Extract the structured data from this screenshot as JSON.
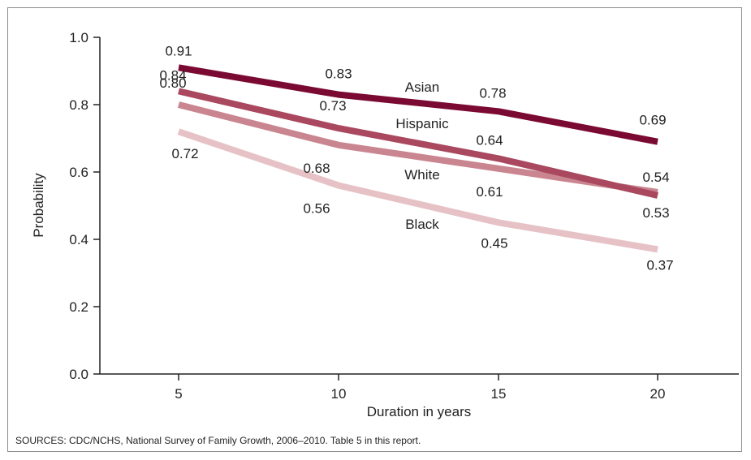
{
  "chart_data": {
    "type": "line",
    "x": [
      5,
      10,
      15,
      20
    ],
    "xlabel": "Duration in years",
    "ylabel": "Probability",
    "ylim": [
      0.0,
      1.0
    ],
    "yticks": [
      "0.0",
      "0.2",
      "0.4",
      "0.6",
      "0.8",
      "1.0"
    ],
    "xticks": [
      "5",
      "10",
      "15",
      "20"
    ],
    "grid": false,
    "series": [
      {
        "name": "Asian",
        "values": [
          0.91,
          0.83,
          0.78,
          0.69
        ],
        "labels": [
          "0.91",
          "0.83",
          "0.78",
          "0.69"
        ],
        "color": "#7b0a32"
      },
      {
        "name": "Hispanic",
        "values": [
          0.84,
          0.73,
          0.64,
          0.53
        ],
        "labels": [
          "0.84",
          "0.73",
          "0.64",
          "0.53"
        ],
        "color": "#a9485f"
      },
      {
        "name": "White",
        "values": [
          0.8,
          0.68,
          0.61,
          0.54
        ],
        "labels": [
          "0.80",
          "0.68",
          "0.61",
          "0.54"
        ],
        "color": "#c98590"
      },
      {
        "name": "Black",
        "values": [
          0.72,
          0.56,
          0.45,
          0.37
        ],
        "labels": [
          "0.72",
          "0.56",
          "0.45",
          "0.37"
        ],
        "color": "#e6c2c7"
      }
    ]
  },
  "footer": {
    "source": "SOURCES: CDC/NCHS, National Survey of Family Growth, 2006–2010. Table 5 in this report."
  }
}
